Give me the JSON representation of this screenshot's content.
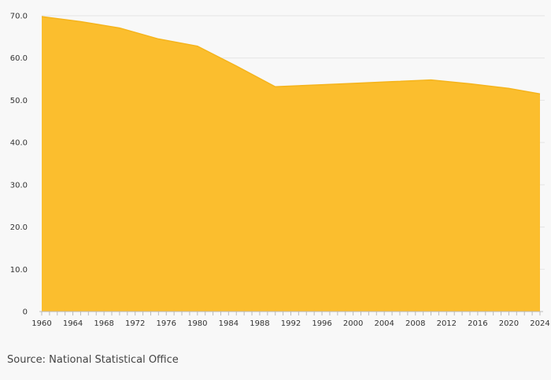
{
  "chart_data": {
    "type": "area",
    "title": "",
    "xlabel": "",
    "ylabel": "",
    "x": [
      1960,
      1965,
      1970,
      1975,
      1980,
      1985,
      1990,
      1995,
      2000,
      2005,
      2010,
      2015,
      2020,
      2024
    ],
    "series": [
      {
        "values": [
          69.8,
          68.6,
          67.1,
          64.5,
          62.8,
          58.1,
          53.2,
          53.6,
          54.0,
          54.4,
          54.8,
          53.9,
          52.8,
          51.5
        ]
      }
    ],
    "xlim": [
      1960,
      2024
    ],
    "ylim": [
      0,
      70
    ],
    "x_ticks": [
      "1960",
      "1964",
      "1968",
      "1972",
      "1976",
      "1980",
      "1984",
      "1988",
      "1992",
      "1996",
      "2000",
      "2004",
      "2008",
      "2012",
      "2016",
      "2020",
      "2024"
    ],
    "y_ticks": [
      "0",
      "10.0",
      "20.0",
      "30.0",
      "40.0",
      "50.0",
      "60.0",
      "70.0"
    ],
    "grid": true,
    "legend": "none",
    "colors": {
      "area_fill": "#fbbe2e",
      "area_line": "#f5b41c",
      "grid": "#e4e4e4",
      "axis": "#bbbbbb"
    }
  },
  "source_text": "Source: National Statistical Office"
}
